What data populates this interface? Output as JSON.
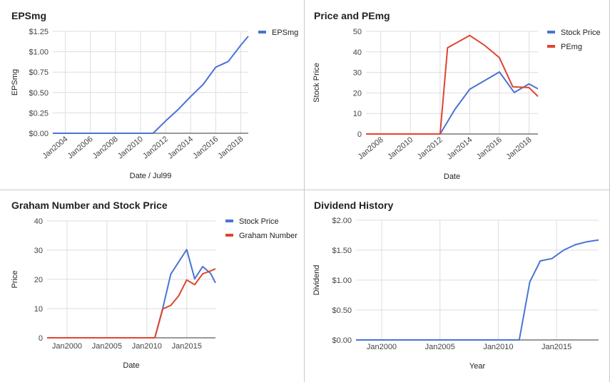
{
  "colors": {
    "blue": "#4a73d4",
    "red": "#e0442e",
    "grid": "#dddddd",
    "axis": "#333333"
  },
  "chart_data": [
    {
      "type": "line",
      "title": "EPSmg",
      "xlabel": "Date / Jul99",
      "ylabel": "EPSmg",
      "x_ticks": [
        "Jan2004",
        "Jan2006",
        "Jan2008",
        "Jan2010",
        "Jan2012",
        "Jan2014",
        "Jan2016",
        "Jan2018"
      ],
      "y_ticks": [
        "$0.00",
        "$0.25",
        "$0.50",
        "$0.75",
        "$1.00",
        "$1.25"
      ],
      "xlim": [
        2003.0,
        2018.6
      ],
      "ylim": [
        0,
        1.25
      ],
      "legend_position": "right",
      "series": [
        {
          "name": "EPSmg",
          "color": "blue",
          "x": [
            2003.0,
            2004,
            2006,
            2008,
            2010,
            2011,
            2012,
            2013,
            2014,
            2015,
            2016,
            2017,
            2018,
            2018.6
          ],
          "y": [
            0,
            0,
            0,
            0,
            0,
            0,
            0.15,
            0.29,
            0.45,
            0.6,
            0.81,
            0.88,
            1.08,
            1.19
          ]
        }
      ]
    },
    {
      "type": "line",
      "title": "Price and PEmg",
      "xlabel": "Date",
      "ylabel": "Stock Price",
      "x_ticks": [
        "Jan2008",
        "Jan2010",
        "Jan2012",
        "Jan2014",
        "Jan2016",
        "Jan2018"
      ],
      "y_ticks": [
        "0",
        "10",
        "20",
        "30",
        "40",
        "50"
      ],
      "xlim": [
        2007.0,
        2018.6
      ],
      "ylim": [
        0,
        50
      ],
      "legend_position": "right",
      "series": [
        {
          "name": "Stock Price",
          "color": "blue",
          "x": [
            2007.0,
            2008,
            2010,
            2012,
            2013,
            2014,
            2015,
            2016,
            2017,
            2018,
            2018.6
          ],
          "y": [
            0,
            0,
            0,
            0,
            12,
            21.8,
            26,
            30.2,
            20.2,
            24.4,
            22
          ]
        },
        {
          "name": "PEmg",
          "color": "red",
          "x": [
            2007.0,
            2008,
            2010,
            2012,
            2012.5,
            2014,
            2015,
            2016,
            2016.9,
            2018,
            2018.6
          ],
          "y": [
            0,
            0,
            0,
            0,
            42,
            48,
            43.2,
            37.2,
            23,
            22.6,
            18.3
          ]
        }
      ]
    },
    {
      "type": "line",
      "title": "Graham Number and Stock Price",
      "xlabel": "Date",
      "ylabel": "Price",
      "x_ticks": [
        "Jan2000",
        "Jan2005",
        "Jan2010",
        "Jan2015"
      ],
      "y_ticks": [
        "0",
        "10",
        "20",
        "30",
        "40"
      ],
      "xlim": [
        1997.5,
        2018.6
      ],
      "ylim": [
        0,
        40
      ],
      "legend_position": "right",
      "series": [
        {
          "name": "Stock Price",
          "color": "blue",
          "x": [
            1997.5,
            2000,
            2005,
            2010,
            2011,
            2012,
            2013,
            2014,
            2015,
            2016,
            2017,
            2018,
            2018.6
          ],
          "y": [
            0,
            0,
            0,
            0,
            0,
            10.2,
            21.8,
            26,
            30.2,
            20.2,
            24.4,
            22,
            18.8
          ]
        },
        {
          "name": "Graham Number",
          "color": "red",
          "x": [
            1997.5,
            2000,
            2005,
            2010,
            2011,
            2012,
            2013,
            2014,
            2015,
            2016,
            2017,
            2018,
            2018.6
          ],
          "y": [
            0,
            0,
            0,
            0,
            0,
            9.9,
            11.1,
            14.4,
            19.8,
            18.2,
            21.9,
            22.9,
            23.6
          ]
        }
      ]
    },
    {
      "type": "line",
      "title": "Dividend History",
      "xlabel": "Year",
      "ylabel": "Dividend",
      "x_ticks": [
        "Jan2000",
        "Jan2005",
        "Jan2010",
        "Jan2015"
      ],
      "y_ticks": [
        "$0.00",
        "$0.50",
        "$1.00",
        "$1.50",
        "$2.00"
      ],
      "xlim": [
        1997.8,
        2018.6
      ],
      "ylim": [
        0,
        2.0
      ],
      "legend_position": "none",
      "series": [
        {
          "name": "",
          "color": "blue",
          "x": [
            1997.8,
            2000,
            2005,
            2010,
            2011,
            2011.8,
            2012.7,
            2013.6,
            2014.6,
            2015.6,
            2016.6,
            2017.6,
            2018.6
          ],
          "y": [
            0,
            0,
            0,
            0,
            0,
            0,
            0.97,
            1.32,
            1.36,
            1.5,
            1.59,
            1.64,
            1.67
          ]
        }
      ]
    }
  ]
}
